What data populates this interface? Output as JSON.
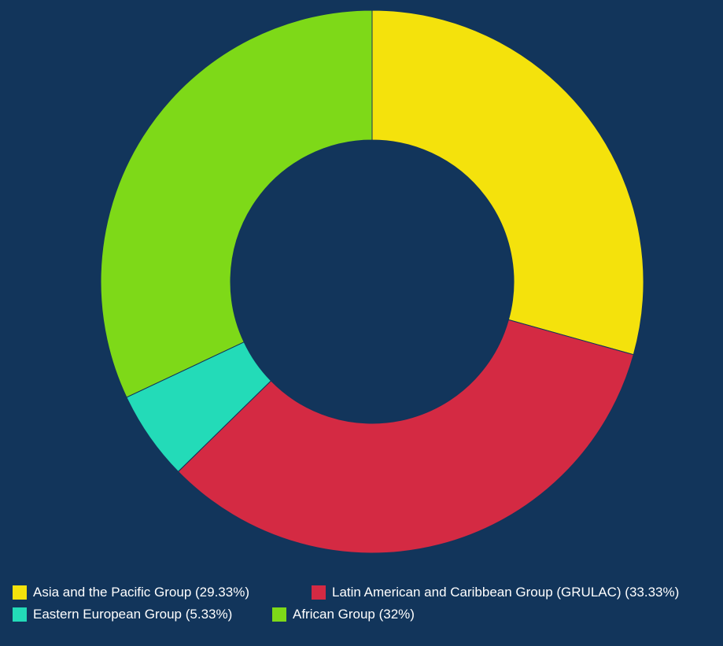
{
  "chart_data": {
    "type": "pie",
    "variant": "donut",
    "slices": [
      {
        "name": "Asia and the Pacific Group",
        "value": 29.33,
        "color": "#f4e20c",
        "legend_label": "Asia and the Pacific Group (29.33%)"
      },
      {
        "name": "Latin American and Caribbean Group (GRULAC)",
        "value": 33.33,
        "color": "#d42a43",
        "legend_label": "Latin American and Caribbean Group (GRULAC) (33.33%)"
      },
      {
        "name": "Eastern European Group",
        "value": 5.33,
        "color": "#23dbb8",
        "legend_label": "Eastern European Group (5.33%)"
      },
      {
        "name": "African Group",
        "value": 32,
        "color": "#7ed918",
        "legend_label": "African Group (32%)"
      }
    ],
    "legend_position": "bottom",
    "background": "#12355b"
  }
}
